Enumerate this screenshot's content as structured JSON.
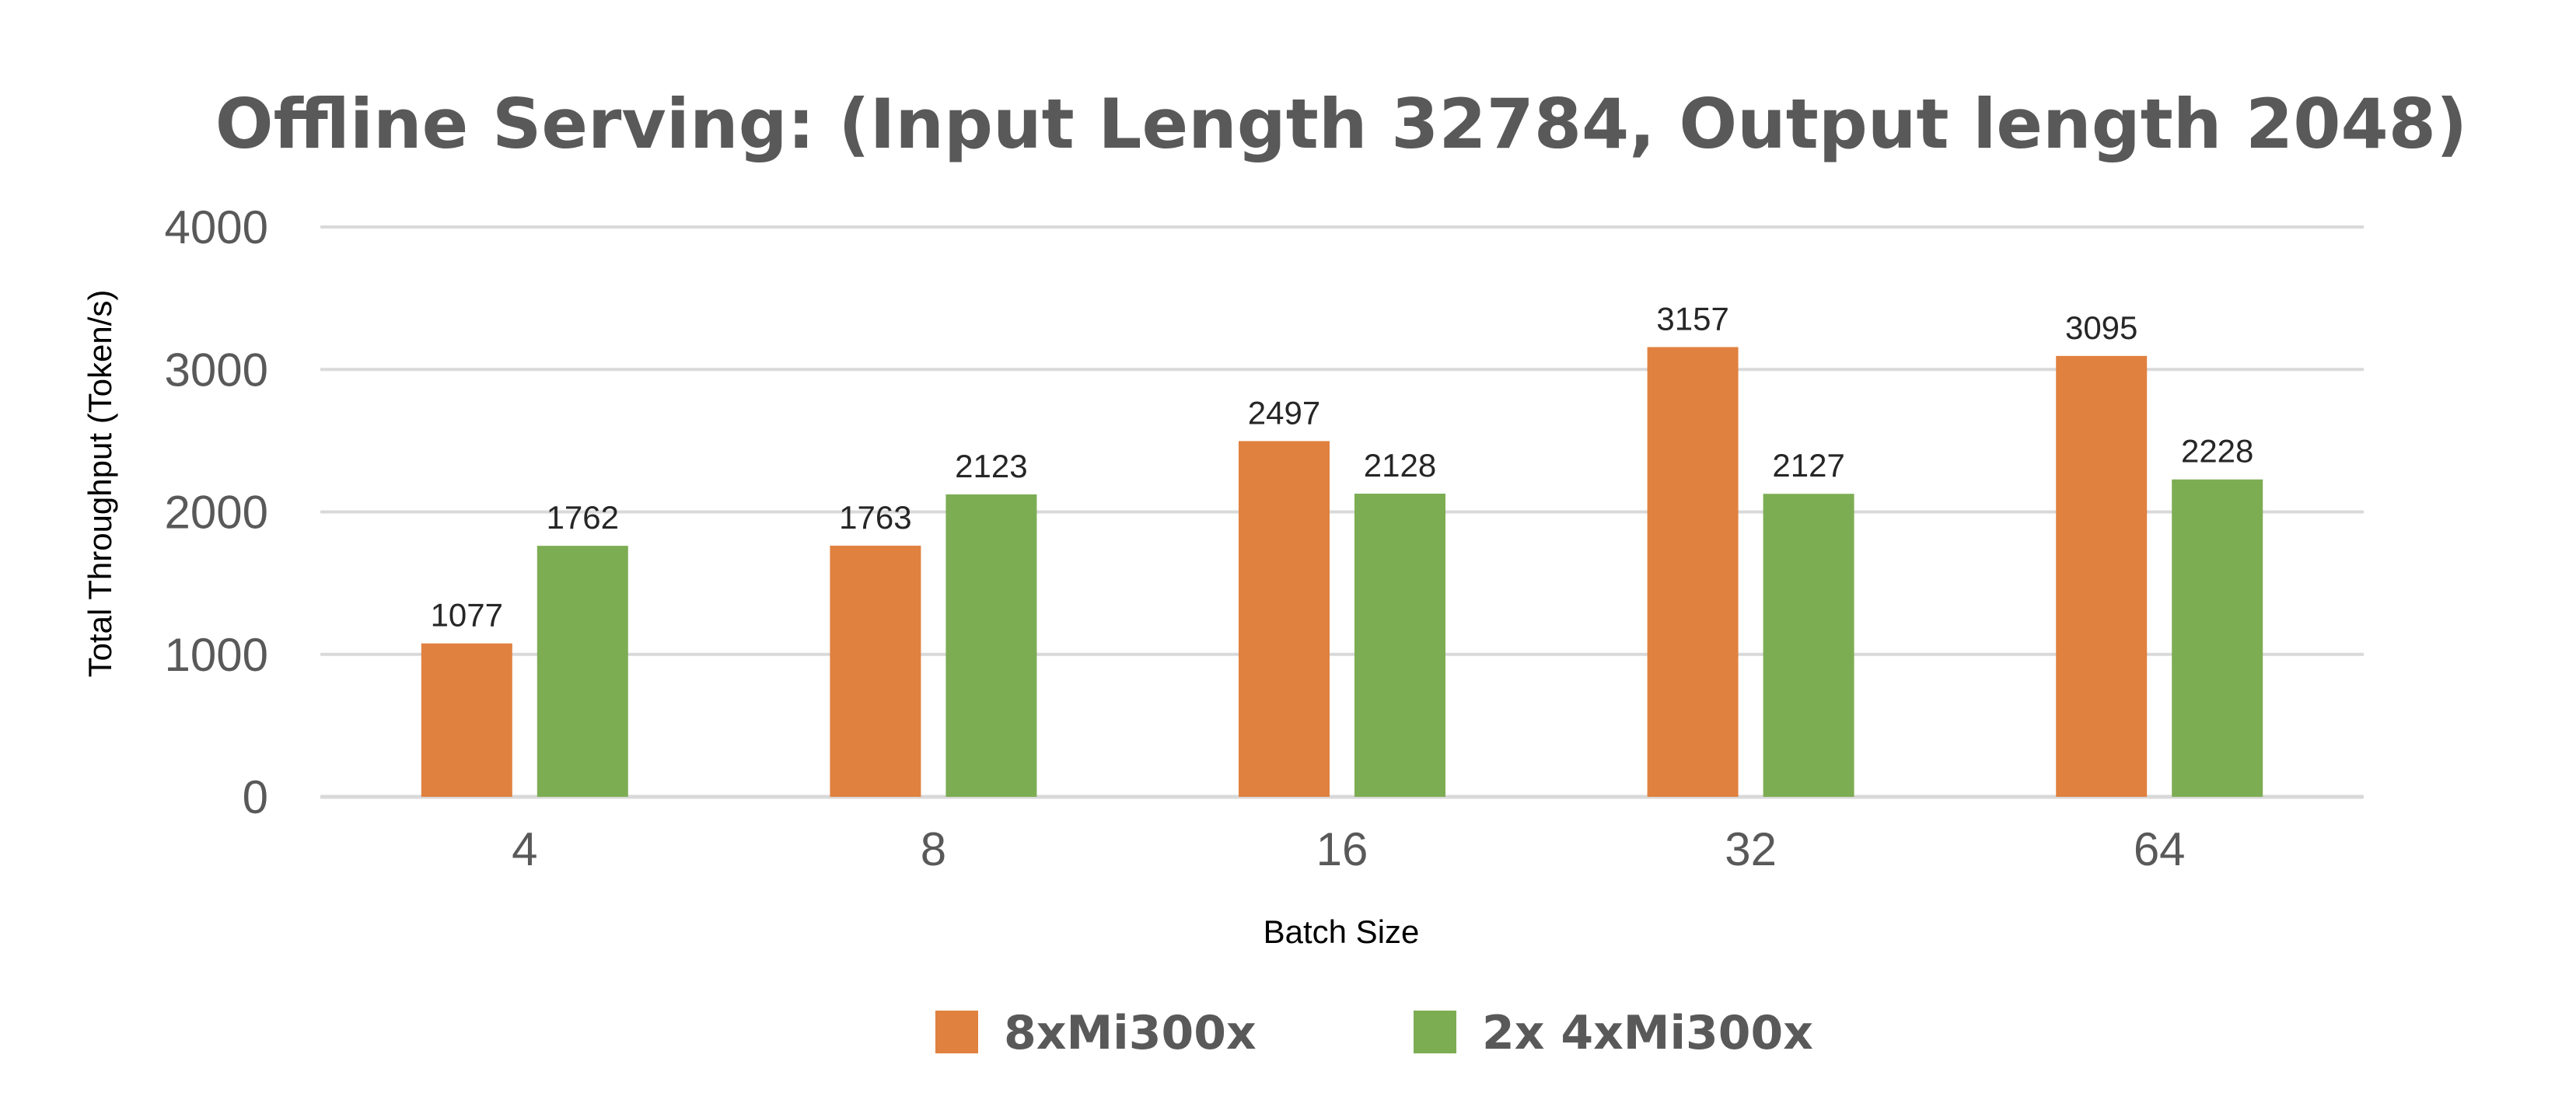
{
  "chart_data": {
    "type": "bar",
    "title": "Offline Serving: (Input Length 32784, Output length 2048)",
    "xlabel": "Batch Size",
    "ylabel": "Total Throughput (Token/s)",
    "categories": [
      "4",
      "8",
      "16",
      "32",
      "64"
    ],
    "ylim": [
      0,
      4000
    ],
    "yticks": [
      "0",
      "1000",
      "2000",
      "3000",
      "4000"
    ],
    "grid": true,
    "legend_position": "bottom",
    "series": [
      {
        "name": "8xMi300x",
        "color": "#e0813f",
        "values": [
          1077,
          1763,
          2497,
          3157,
          3095
        ],
        "labels": [
          "1077",
          "1763",
          "2497",
          "3157",
          "3095"
        ]
      },
      {
        "name": "2x 4xMi300x",
        "color": "#7dad53",
        "values": [
          1762,
          2123,
          2128,
          2127,
          2228
        ],
        "labels": [
          "1762",
          "2123",
          "2128",
          "2127",
          "2228"
        ]
      }
    ]
  }
}
